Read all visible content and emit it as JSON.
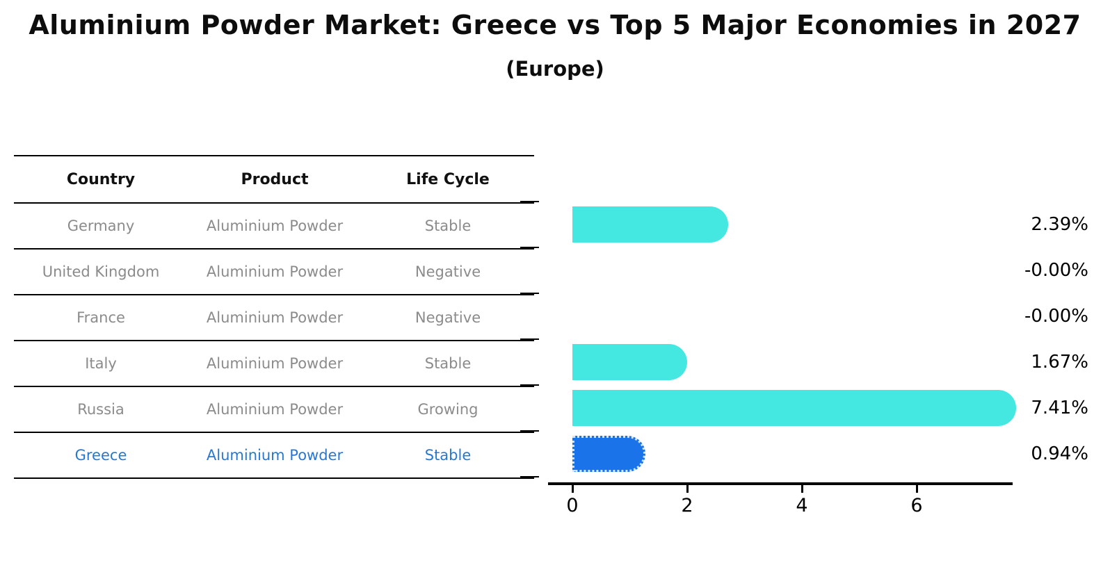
{
  "title": "Aluminium Powder Market: Greece vs Top 5 Major Economies in 2027",
  "subtitle": "(Europe)",
  "table": {
    "headers": [
      "Country",
      "Product",
      "Life Cycle"
    ],
    "rows": [
      {
        "country": "Germany",
        "product": "Aluminium Powder",
        "life_cycle": "Stable",
        "highlighted": false
      },
      {
        "country": "United Kingdom",
        "product": "Aluminium Powder",
        "life_cycle": "Negative",
        "highlighted": false
      },
      {
        "country": "France",
        "product": "Aluminium Powder",
        "life_cycle": "Negative",
        "highlighted": false
      },
      {
        "country": "Italy",
        "product": "Aluminium Powder",
        "life_cycle": "Stable",
        "highlighted": false
      },
      {
        "country": "Russia",
        "product": "Aluminium Powder",
        "life_cycle": "Growing",
        "highlighted": false
      },
      {
        "country": "Greece",
        "product": "Aluminium Powder",
        "life_cycle": "Stable",
        "highlighted": true
      }
    ]
  },
  "chart_data": {
    "type": "bar",
    "orientation": "horizontal",
    "title": "Aluminium Powder Market: Greece vs Top 5 Major Economies in 2027",
    "subtitle": "(Europe)",
    "categories": [
      "Germany",
      "United Kingdom",
      "France",
      "Italy",
      "Russia",
      "Greece"
    ],
    "values": [
      2.39,
      -0.0,
      -0.0,
      1.67,
      7.41,
      0.94
    ],
    "value_labels": [
      "2.39%",
      "-0.00%",
      "-0.00%",
      "1.67%",
      "7.41%",
      "0.94%"
    ],
    "xticks": [
      0,
      2,
      4,
      6
    ],
    "xlim": [
      -0.42,
      7.7
    ],
    "grid": false,
    "legend": false,
    "bar_color": "#45E8E0",
    "highlight_color": "#1A73E8",
    "highlight_index": 5,
    "text_highlight_color": "#2878d0"
  }
}
